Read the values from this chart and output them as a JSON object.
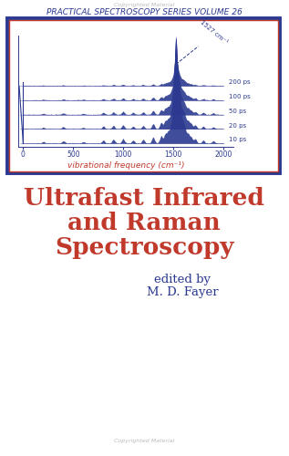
{
  "bg_color": "#ffffff",
  "header_text": "PRACTICAL SPECTROSCOPY SERIES VOLUME 26",
  "header_color": "#2b3990",
  "header_fontsize": 6.5,
  "watermark_top": "Copyrighted Material",
  "watermark_color": "#bbbbbb",
  "watermark_fontsize": 4.5,
  "box_outer_color": "#2b3990",
  "box_inner_color": "#c0392b",
  "chart_xlabel": "vibrational frequency (cm⁻¹)",
  "chart_xlabel_color": "#c0392b",
  "chart_xticks": [
    0,
    500,
    1000,
    1500,
    2000
  ],
  "chart_annot_freq": "1527 cm⁻¹",
  "chart_annot_color": "#2b3990",
  "time_labels": [
    "10 ps",
    "20 ps",
    "50 ps",
    "100 ps",
    "200 ps"
  ],
  "title_line1": "Ultrafast Infrared",
  "title_line2": "and Raman",
  "title_line3": "Spectroscopy",
  "title_color": "#c0392b",
  "title_fontsize": 19,
  "editor_line1": "edited by",
  "editor_line2": "M. D. Fayer",
  "editor_color": "#2b3990",
  "editor_fontsize": 9.5,
  "footer_text": "Copyrighted Material",
  "footer_color": "#bbbbbb",
  "footer_fontsize": 4.5
}
